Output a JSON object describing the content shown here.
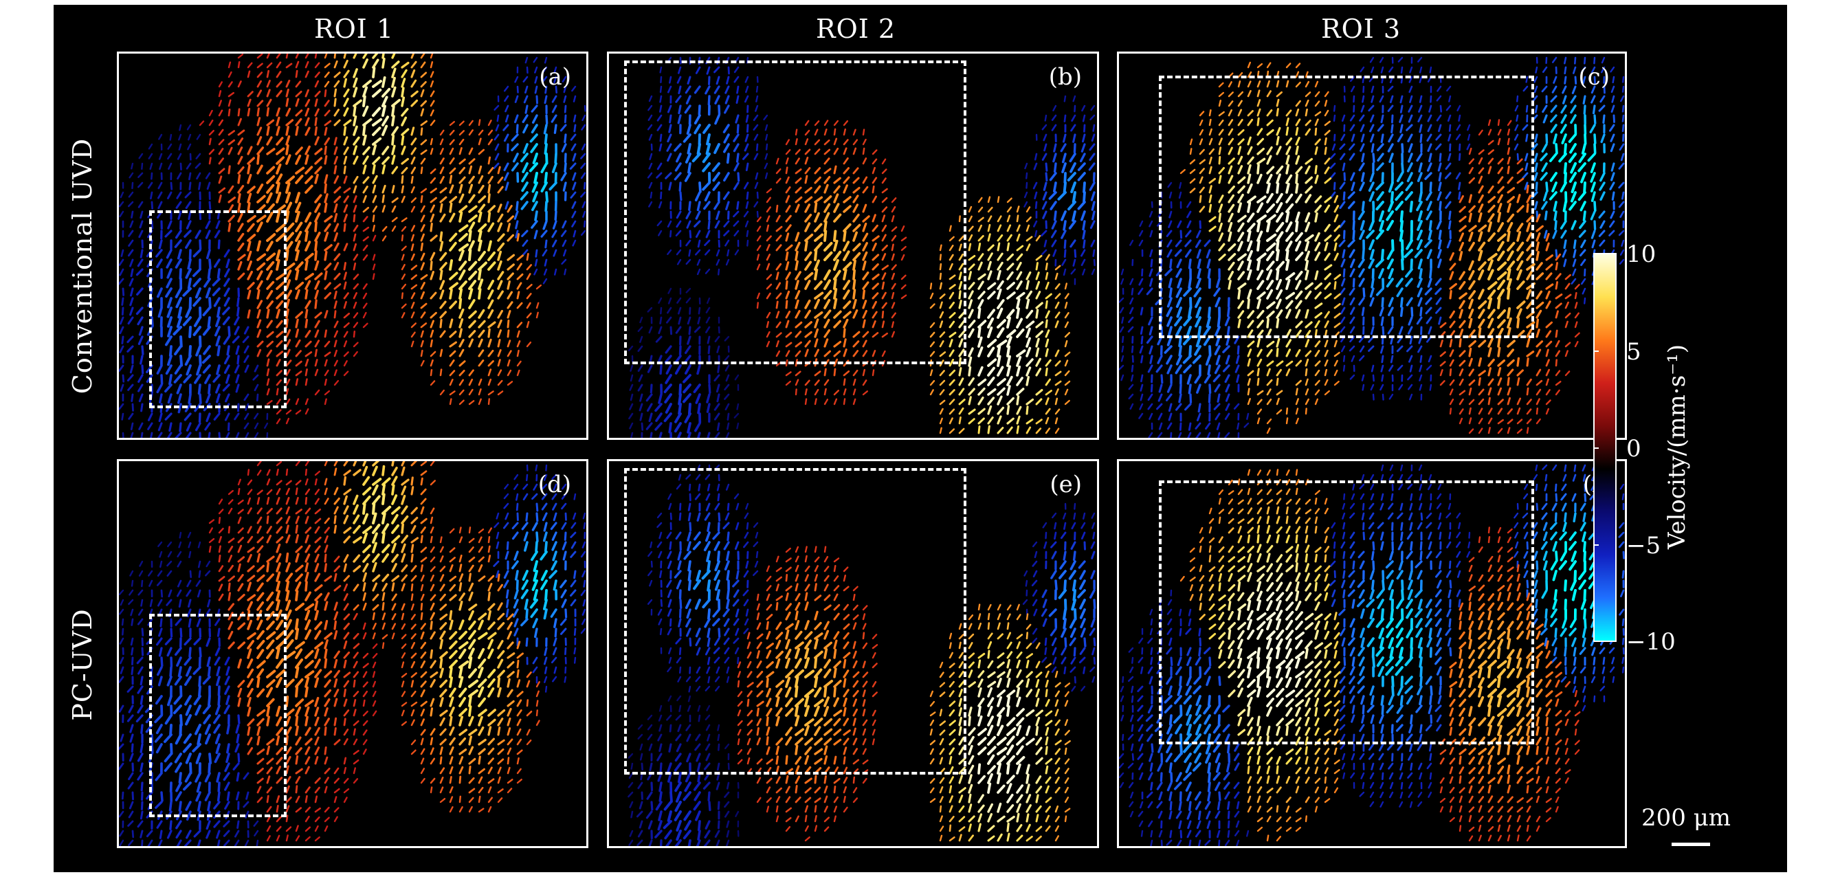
{
  "columns": [
    "ROI 1",
    "ROI 2",
    "ROI 3"
  ],
  "rows": [
    "Conventional UVD",
    "PC-UVD"
  ],
  "panels": [
    {
      "label": "(a)"
    },
    {
      "label": "(b)"
    },
    {
      "label": "(c)"
    },
    {
      "label": "(d)"
    },
    {
      "label": "(e)"
    },
    {
      "label": "(f)"
    }
  ],
  "colorbar": {
    "label": "Velocity/(mm·s⁻¹)",
    "ticks": [
      "10",
      "5",
      "0",
      "−5",
      "−10"
    ],
    "range": [
      -10,
      10
    ],
    "colormap": [
      "#00ffff",
      "#1f6fff",
      "#1020c0",
      "#0a0a70",
      "#000000",
      "#7a0a0a",
      "#d0201a",
      "#ff7a1a",
      "#ffe050",
      "#ffffe0"
    ]
  },
  "scalebar": {
    "label": "200 μm"
  }
}
